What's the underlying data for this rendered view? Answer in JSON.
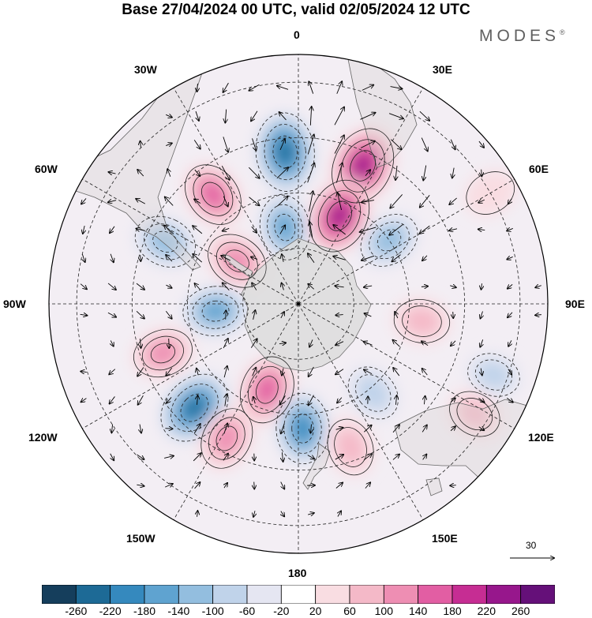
{
  "title": "Base 27/04/2024 00 UTC, valid 02/05/2024 12 UTC",
  "brand": {
    "text": "MODES",
    "mark": "®"
  },
  "longitude_labels": [
    {
      "id": "0",
      "text": "0"
    },
    {
      "id": "30e",
      "text": "30E"
    },
    {
      "id": "60e",
      "text": "60E"
    },
    {
      "id": "90e",
      "text": "90E"
    },
    {
      "id": "120e",
      "text": "120E"
    },
    {
      "id": "150e",
      "text": "150E"
    },
    {
      "id": "180",
      "text": "180"
    },
    {
      "id": "150w",
      "text": "150W"
    },
    {
      "id": "120w",
      "text": "120W"
    },
    {
      "id": "90w",
      "text": "90W"
    },
    {
      "id": "60w",
      "text": "60W"
    },
    {
      "id": "30w",
      "text": "30W"
    }
  ],
  "vector_reference": {
    "label": "30"
  },
  "colorbar": {
    "colors": [
      "#153e5c",
      "#1d6a96",
      "#3589be",
      "#5fa3d0",
      "#93bedf",
      "#c0d3ea",
      "#e5e6f2",
      "#ffffff",
      "#f9dde2",
      "#f4b9c8",
      "#ee8eb3",
      "#e25ea3",
      "#c62d93",
      "#97178c",
      "#651079"
    ],
    "ticks": [
      "-260",
      "-220",
      "-180",
      "-140",
      "-100",
      "-60",
      "-20",
      "20",
      "60",
      "100",
      "140",
      "180",
      "220",
      "260"
    ]
  },
  "anomaly_centers": [
    {
      "lon": -5,
      "colat": 55,
      "value": -250
    },
    {
      "lon": -10,
      "colat": 28,
      "value": -150
    },
    {
      "lon": 25,
      "colat": 55,
      "value": 240
    },
    {
      "lon": 25,
      "colat": 35,
      "value": 220
    },
    {
      "lon": 55,
      "colat": 40,
      "value": -120
    },
    {
      "lon": -38,
      "colat": 50,
      "value": 150
    },
    {
      "lon": -65,
      "colat": 53,
      "value": -130
    },
    {
      "lon": -55,
      "colat": 27,
      "value": 130
    },
    {
      "lon": -95,
      "colat": 30,
      "value": -150
    },
    {
      "lon": -110,
      "colat": 52,
      "value": 110
    },
    {
      "lon": -135,
      "colat": 53,
      "value": -230
    },
    {
      "lon": -160,
      "colat": 33,
      "value": 170
    },
    {
      "lon": -152,
      "colat": 55,
      "value": 130
    },
    {
      "lon": 178,
      "colat": 45,
      "value": -190
    },
    {
      "lon": 160,
      "colat": 55,
      "value": 90
    },
    {
      "lon": 140,
      "colat": 42,
      "value": -90
    },
    {
      "lon": 98,
      "colat": 45,
      "value": 80
    },
    {
      "lon": 110,
      "colat": 75,
      "value": -60
    },
    {
      "lon": 122,
      "colat": 75,
      "value": 60
    },
    {
      "lon": 60,
      "colat": 80,
      "value": 40
    }
  ]
}
